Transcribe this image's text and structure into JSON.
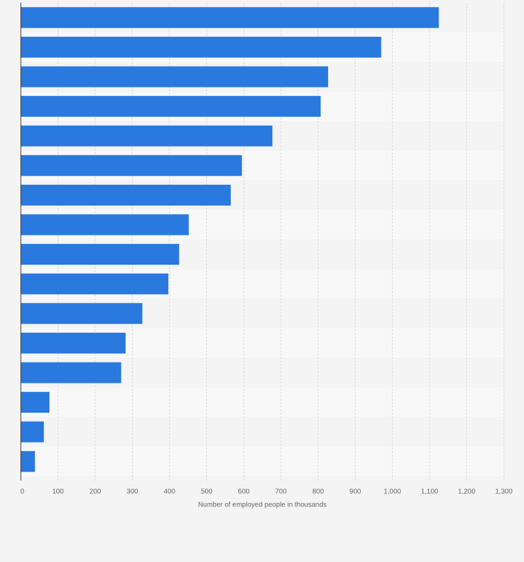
{
  "chart_data": {
    "type": "bar",
    "orientation": "horizontal",
    "categories": [
      "",
      "",
      "",
      "",
      "",
      "",
      "",
      "",
      "",
      "",
      "",
      "",
      "",
      "",
      "",
      ""
    ],
    "values": [
      1125,
      970,
      827,
      807,
      677,
      595,
      565,
      452,
      426,
      397,
      327,
      282,
      270,
      77,
      62,
      38
    ],
    "xlabel": "Number of employed people in thousands",
    "ylabel": "",
    "xlim": [
      0,
      1300
    ],
    "xticks": [
      0,
      100,
      200,
      300,
      400,
      500,
      600,
      700,
      800,
      900,
      1000,
      1100,
      1200,
      1300
    ],
    "xtick_labels": [
      "0",
      "100",
      "200",
      "300",
      "400",
      "500",
      "600",
      "700",
      "800",
      "900",
      "1,000",
      "1,100",
      "1,200",
      "1,300"
    ],
    "grid": true,
    "bar_color": "#2979de",
    "band_colors": [
      "#f4f4f4",
      "#f8f8f8"
    ]
  }
}
